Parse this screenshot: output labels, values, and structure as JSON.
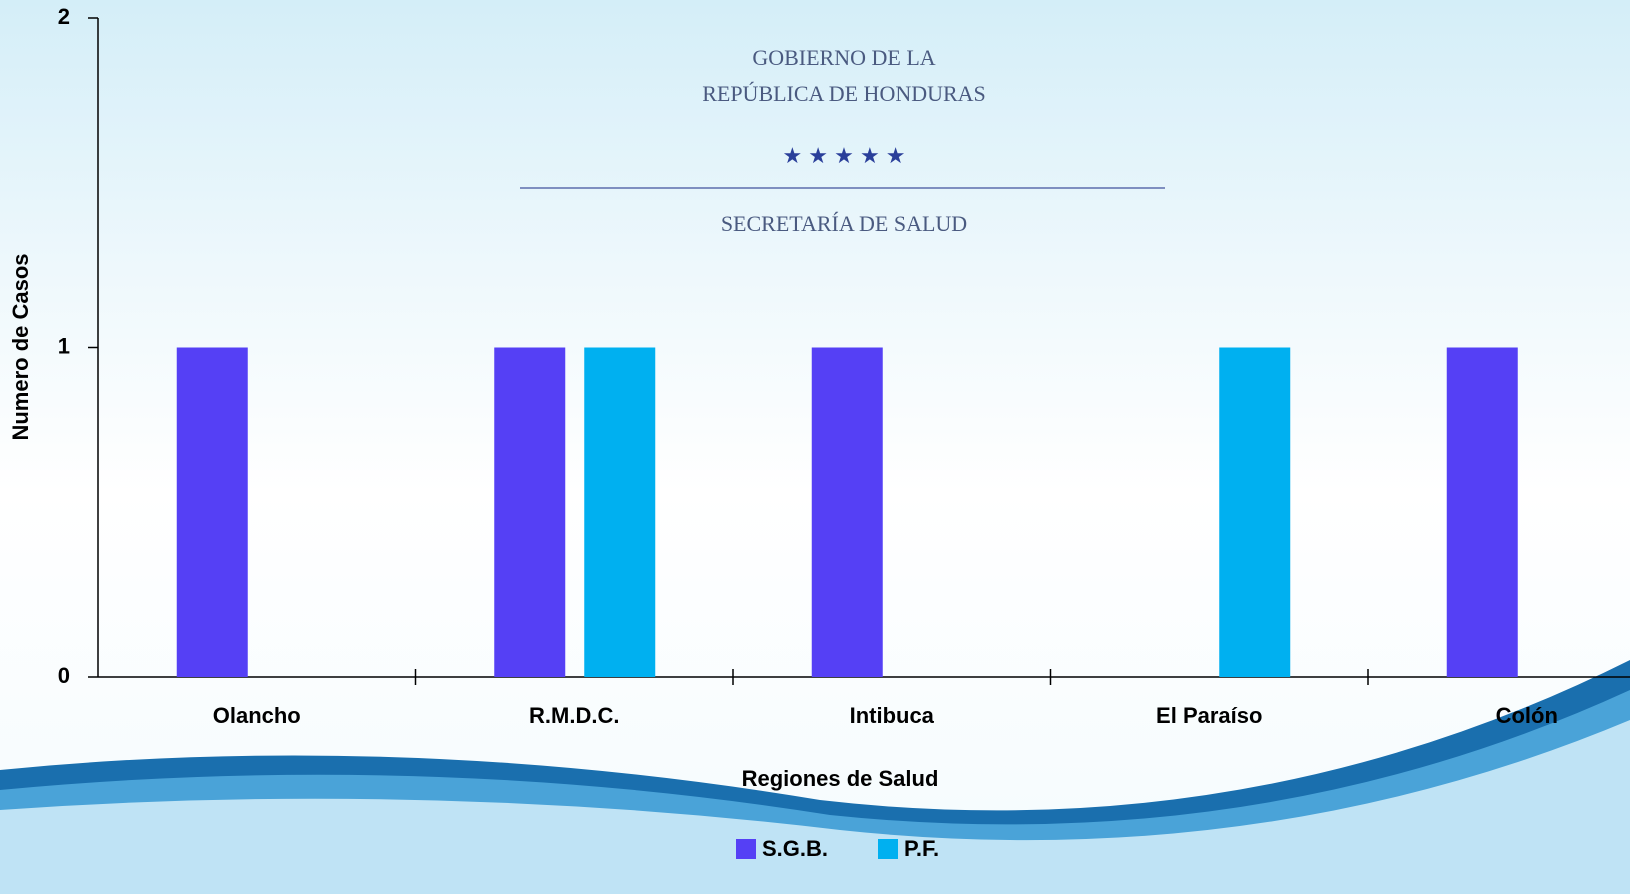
{
  "chart_data": {
    "type": "bar",
    "logo_text": [
      "GOBIERNO DE LA",
      "REPÚBLICA DE HONDURAS",
      "SECRETARÍA DE SALUD"
    ],
    "x_label": "Regiones de Salud",
    "y_label": "Numero de Casos",
    "categories": [
      "Olancho",
      "R.M.D.C.",
      "Intibuca",
      "El Paraíso",
      "Colón"
    ],
    "series": [
      {
        "name": "S.G.B.",
        "color": "#5540f5",
        "values": [
          1,
          1,
          1,
          0,
          1
        ]
      },
      {
        "name": "P.F.",
        "color": "#00b0f0",
        "values": [
          0,
          1,
          0,
          1,
          0
        ]
      }
    ],
    "ylim": [
      0,
      2
    ],
    "yticks": [
      0,
      1,
      2
    ],
    "grid": false,
    "legend": "bottom"
  }
}
